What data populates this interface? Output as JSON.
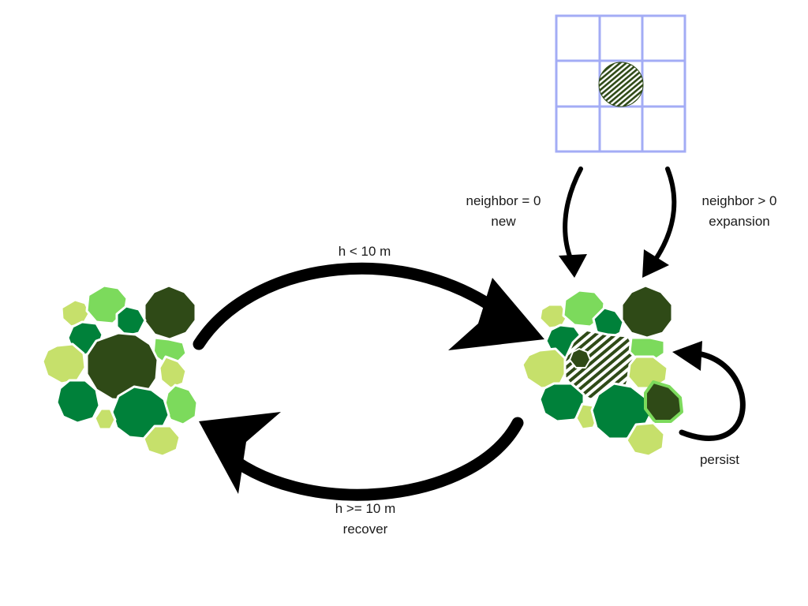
{
  "colors": {
    "dark_green": "#2F4A17",
    "mid_green": "#00813A",
    "bright_green": "#7CDA5C",
    "lime_green": "#C6E06B",
    "grid_blue": "#A3ACF5",
    "arrow": "#000000"
  },
  "labels": {
    "gap_transition": "h < 10 m",
    "recover_line1": "h >= 10 m",
    "recover_line2": "recover",
    "new_line1": "neighbor = 0",
    "new_line2": "new",
    "expansion_line1": "neighbor > 0",
    "expansion_line2": "expansion",
    "persist": "persist"
  },
  "grid": {
    "rows": 3,
    "cols": 3,
    "center_cell": "hatched"
  },
  "icons": [
    "canopy-cluster-intact",
    "canopy-cluster-with-gap",
    "neighborhood-grid",
    "curved-arrow"
  ]
}
